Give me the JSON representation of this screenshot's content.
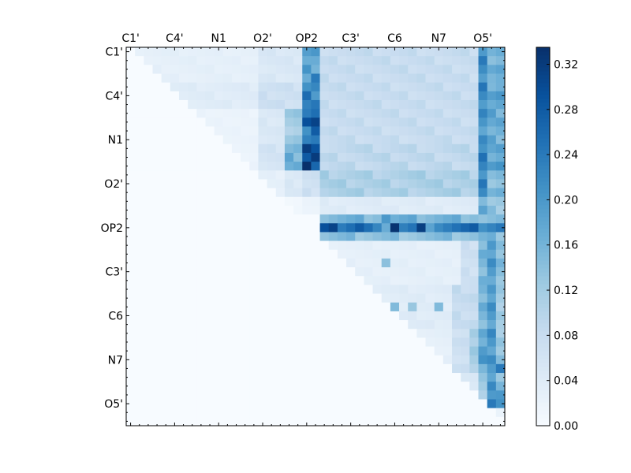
{
  "chart_data": {
    "type": "heatmap",
    "size": 43,
    "tick_labels": [
      "C1'",
      "C4'",
      "N1",
      "O2'",
      "OP2",
      "C3'",
      "C6",
      "N7",
      "O5'"
    ],
    "label_every": 5,
    "colormap": {
      "name": "Blues",
      "stops": [
        "#f7fbff",
        "#deebf7",
        "#c6dbef",
        "#9ecae1",
        "#6baed6",
        "#4292c6",
        "#2171b5",
        "#08519c",
        "#08306b"
      ]
    },
    "colorbar": {
      "min": 0.0,
      "max": 0.335,
      "ticks": [
        "0.00",
        "0.04",
        "0.08",
        "0.12",
        "0.16",
        "0.20",
        "0.24",
        "0.28",
        "0.32"
      ]
    },
    "tick_placement": {
      "x": "top",
      "y": "left"
    },
    "grid": false,
    "value_encoding": "upper triangle only; rows are matrix rows, columns are matrix columns; lower triangle is 0.0",
    "row_bands": [
      {
        "rows": [
          0,
          3
        ],
        "cols_start": 1,
        "levels": [
          [
            1,
            15,
            0.03
          ],
          [
            15,
            20,
            0.05
          ],
          [
            20,
            22,
            0.18
          ],
          [
            22,
            40,
            0.08
          ],
          [
            40,
            41,
            0.21
          ],
          [
            41,
            43,
            0.16
          ]
        ]
      },
      {
        "rows": [
          4,
          6
        ],
        "cols_start": 5,
        "levels": [
          [
            5,
            15,
            0.04
          ],
          [
            15,
            20,
            0.07
          ],
          [
            20,
            22,
            0.23
          ],
          [
            22,
            40,
            0.08
          ],
          [
            40,
            41,
            0.22
          ],
          [
            41,
            43,
            0.18
          ]
        ]
      },
      {
        "rows": [
          7,
          10
        ],
        "cols_start": 8,
        "levels": [
          [
            8,
            15,
            0.02
          ],
          [
            15,
            18,
            0.05
          ],
          [
            18,
            20,
            0.12
          ],
          [
            20,
            22,
            0.27
          ],
          [
            22,
            40,
            0.08
          ],
          [
            40,
            41,
            0.21
          ],
          [
            41,
            43,
            0.17
          ]
        ]
      },
      {
        "rows": [
          11,
          13
        ],
        "cols_start": 12,
        "levels": [
          [
            12,
            15,
            0.02
          ],
          [
            15,
            18,
            0.06
          ],
          [
            18,
            20,
            0.16
          ],
          [
            20,
            22,
            0.3
          ],
          [
            22,
            40,
            0.09
          ],
          [
            40,
            41,
            0.22
          ],
          [
            41,
            43,
            0.18
          ]
        ]
      },
      {
        "rows": [
          14,
          16
        ],
        "cols_start": 15,
        "levels": [
          [
            15,
            18,
            0.03
          ],
          [
            18,
            20,
            0.05
          ],
          [
            20,
            22,
            0.07
          ],
          [
            22,
            40,
            0.11
          ],
          [
            40,
            41,
            0.22
          ],
          [
            41,
            43,
            0.15
          ]
        ]
      },
      {
        "rows": [
          17,
          18
        ],
        "cols_start": 18,
        "levels": [
          [
            18,
            20,
            0.01
          ],
          [
            20,
            22,
            0.02
          ],
          [
            22,
            40,
            0.04
          ],
          [
            40,
            41,
            0.17
          ],
          [
            41,
            43,
            0.13
          ]
        ]
      },
      {
        "rows": [
          19,
          19
        ],
        "cols_start": 22,
        "levels": [
          [
            22,
            40,
            0.16
          ],
          [
            40,
            43,
            0.14
          ]
        ]
      },
      {
        "rows": [
          20,
          20
        ],
        "cols_start": 22,
        "levels": [
          [
            22,
            27,
            0.27
          ],
          [
            27,
            28,
            0.24
          ],
          [
            28,
            30,
            0.2
          ],
          [
            30,
            31,
            0.33
          ],
          [
            31,
            33,
            0.24
          ],
          [
            33,
            34,
            0.29
          ],
          [
            34,
            35,
            0.16
          ],
          [
            35,
            43,
            0.25
          ]
        ]
      },
      {
        "rows": [
          21,
          21
        ],
        "cols_start": 22,
        "levels": [
          [
            22,
            40,
            0.14
          ],
          [
            40,
            43,
            0.15
          ]
        ]
      },
      {
        "rows": [
          22,
          26
        ],
        "cols_start": 23,
        "levels": [
          [
            23,
            38,
            0.03
          ],
          [
            38,
            40,
            0.07
          ],
          [
            40,
            41,
            0.15
          ],
          [
            41,
            42,
            0.2
          ],
          [
            42,
            43,
            0.14
          ]
        ]
      },
      {
        "rows": [
          27,
          31
        ],
        "cols_start": 28,
        "levels": [
          [
            28,
            37,
            0.04
          ],
          [
            37,
            40,
            0.08
          ],
          [
            40,
            41,
            0.16
          ],
          [
            41,
            42,
            0.19
          ],
          [
            42,
            43,
            0.12
          ]
        ]
      },
      {
        "rows": [
          32,
          36
        ],
        "cols_start": 33,
        "levels": [
          [
            33,
            37,
            0.03
          ],
          [
            37,
            39,
            0.07
          ],
          [
            39,
            40,
            0.12
          ],
          [
            40,
            41,
            0.17
          ],
          [
            41,
            42,
            0.2
          ],
          [
            42,
            43,
            0.13
          ]
        ]
      },
      {
        "rows": [
          37,
          40
        ],
        "cols_start": 38,
        "levels": [
          [
            38,
            40,
            0.05
          ],
          [
            40,
            41,
            0.12
          ],
          [
            41,
            42,
            0.21
          ],
          [
            42,
            43,
            0.14
          ]
        ]
      },
      {
        "rows": [
          41,
          42
        ],
        "cols_start": 42,
        "levels": [
          [
            42,
            43,
            0.02
          ]
        ]
      }
    ],
    "notable_cells": [
      {
        "row": 1,
        "col": 21,
        "value": 0.17
      },
      {
        "row": 3,
        "col": 20,
        "value": 0.17
      },
      {
        "row": 3,
        "col": 21,
        "value": 0.24
      },
      {
        "row": 9,
        "col": 20,
        "value": 0.21
      },
      {
        "row": 10,
        "col": 21,
        "value": 0.24
      },
      {
        "row": 12,
        "col": 21,
        "value": 0.32
      },
      {
        "row": 11,
        "col": 21,
        "value": 0.29
      },
      {
        "row": 20,
        "col": 30,
        "value": 0.33
      },
      {
        "row": 20,
        "col": 26,
        "value": 0.28
      },
      {
        "row": 19,
        "col": 29,
        "value": 0.2
      },
      {
        "row": 24,
        "col": 29,
        "value": 0.14
      },
      {
        "row": 29,
        "col": 30,
        "value": 0.15
      },
      {
        "row": 29,
        "col": 32,
        "value": 0.13
      },
      {
        "row": 29,
        "col": 35,
        "value": 0.15
      },
      {
        "row": 35,
        "col": 40,
        "value": 0.21
      },
      {
        "row": 36,
        "col": 42,
        "value": 0.24
      },
      {
        "row": 40,
        "col": 42,
        "value": 0.21
      },
      {
        "row": 39,
        "col": 42,
        "value": 0.2
      }
    ]
  }
}
